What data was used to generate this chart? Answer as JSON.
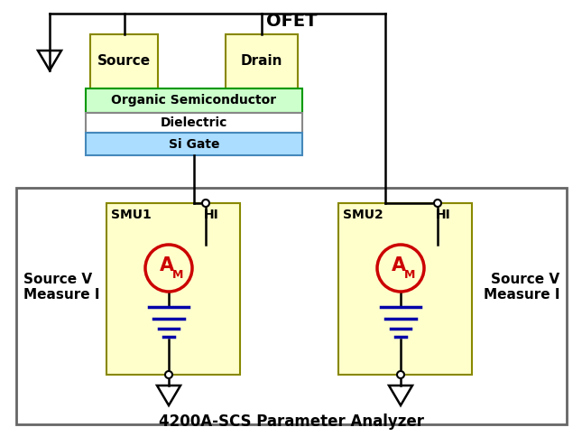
{
  "title": "OFET",
  "bottom_title": "4200A-SCS Parameter Analyzer",
  "left_label": "Source V\nMeasure I",
  "right_label": "Source V\nMeasure I",
  "smu1_label": "SMU1",
  "smu2_label": "SMU2",
  "hi_label": "HI",
  "source_label": "Source",
  "drain_label": "Drain",
  "organic_label": "Organic Semiconductor",
  "dielectric_label": "Dielectric",
  "sigate_label": "Si Gate",
  "bg_color": "#ffffff",
  "smu_box_color": "#ffffcc",
  "source_drain_color": "#ffffcc",
  "organic_color": "#ccffcc",
  "dielectric_color": "#ffffff",
  "sigate_color": "#aaddff",
  "analyzer_box_color": "#ffffff",
  "analyzer_border_color": "#666666",
  "wire_color": "#000000",
  "ammeter_color": "#cc0000",
  "ground_color": "#0000aa"
}
